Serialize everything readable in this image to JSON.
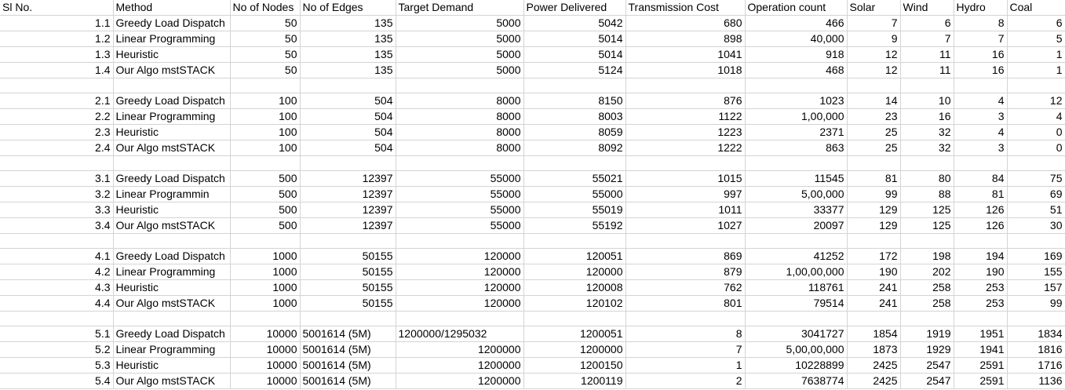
{
  "header": [
    "Sl No.",
    "Method",
    "No of Nodes",
    "No of Edges",
    "Target Demand",
    "Power Delivered",
    "Transmission Cost",
    "Operation count",
    "Solar",
    "Wind",
    "Hydro",
    "Coal"
  ],
  "rows": [
    [
      "1.1",
      "Greedy Load Dispatch",
      "50",
      "135",
      "5000",
      "5042",
      "680",
      "466",
      "7",
      "6",
      "8",
      "6"
    ],
    [
      "1.2",
      "Linear Programming",
      "50",
      "135",
      "5000",
      "5014",
      "898",
      "40,000",
      "9",
      "7",
      "7",
      "5"
    ],
    [
      "1.3",
      "Heuristic",
      "50",
      "135",
      "5000",
      "5014",
      "1041",
      "918",
      "12",
      "11",
      "16",
      "1"
    ],
    [
      "1.4",
      "Our Algo mstSTACK",
      "50",
      "135",
      "5000",
      "5124",
      "1018",
      "468",
      "12",
      "11",
      "16",
      "1"
    ],
    null,
    [
      "2.1",
      "Greedy Load Dispatch",
      "100",
      "504",
      "8000",
      "8150",
      "876",
      "1023",
      "14",
      "10",
      "4",
      "12"
    ],
    [
      "2.2",
      "Linear Programming",
      "100",
      "504",
      "8000",
      "8003",
      "1122",
      "1,00,000",
      "23",
      "16",
      "3",
      "4"
    ],
    [
      "2.3",
      "Heuristic",
      "100",
      "504",
      "8000",
      "8059",
      "1223",
      "2371",
      "25",
      "32",
      "4",
      "0"
    ],
    [
      "2.4",
      "Our Algo mstSTACK",
      "100",
      "504",
      "8000",
      "8092",
      "1222",
      "863",
      "25",
      "32",
      "3",
      "0"
    ],
    null,
    [
      "3.1",
      "Greedy Load Dispatch",
      "500",
      "12397",
      "55000",
      "55021",
      "1015",
      "11545",
      "81",
      "80",
      "84",
      "75"
    ],
    [
      "3.2",
      "Linear Programmin",
      "500",
      "12397",
      "55000",
      "55000",
      "997",
      "5,00,000",
      "99",
      "88",
      "81",
      "69"
    ],
    [
      "3.3",
      "Heuristic",
      "500",
      "12397",
      "55000",
      "55019",
      "1011",
      "33377",
      "129",
      "125",
      "126",
      "51"
    ],
    [
      "3.4",
      "Our Algo mstSTACK",
      "500",
      "12397",
      "55000",
      "55192",
      "1027",
      "20097",
      "129",
      "125",
      "126",
      "30"
    ],
    null,
    [
      "4.1",
      "Greedy Load Dispatch",
      "1000",
      "50155",
      "120000",
      "120051",
      "869",
      "41252",
      "172",
      "198",
      "194",
      "169"
    ],
    [
      "4.2",
      "Linear Programming",
      "1000",
      "50155",
      "120000",
      "120000",
      "879",
      "1,00,00,000",
      "190",
      "202",
      "190",
      "155"
    ],
    [
      "4.3",
      "Heuristic",
      "1000",
      "50155",
      "120000",
      "120008",
      "762",
      "118761",
      "241",
      "258",
      "253",
      "157"
    ],
    [
      "4.4",
      "Our Algo mstSTACK",
      "1000",
      "50155",
      "120000",
      "120102",
      "801",
      "79514",
      "241",
      "258",
      "253",
      "99"
    ],
    null,
    [
      "5.1",
      "Greedy Load Dispatch",
      "10000",
      "5001614 (5M)",
      "1200000/1295032",
      "1200051",
      "8",
      "3041727",
      "1854",
      "1919",
      "1951",
      "1834"
    ],
    [
      "5.2",
      "Linear Programming",
      "10000",
      "5001614 (5M)",
      "1200000",
      "1200000",
      "7",
      "5,00,00,000",
      "1873",
      "1929",
      "1941",
      "1816"
    ],
    [
      "5.3",
      "Heuristic",
      "10000",
      "5001614 (5M)",
      "1200000",
      "1200150",
      "1",
      "10228899",
      "2425",
      "2547",
      "2591",
      "1716"
    ],
    [
      "5.4",
      "Our Algo mstSTACK",
      "10000",
      "5001614 (5M)",
      "1200000",
      "1200119",
      "2",
      "7638774",
      "2425",
      "2547",
      "2591",
      "1136"
    ]
  ]
}
